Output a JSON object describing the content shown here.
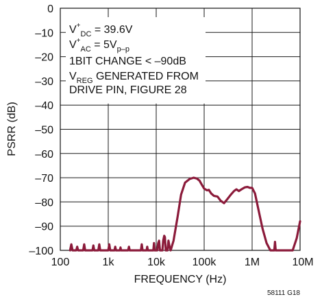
{
  "chart_data": {
    "type": "line",
    "xlabel": "FREQUENCY (Hz)",
    "ylabel": "PSRR (dB)",
    "x_scale": "log",
    "xlim": [
      100,
      10000000
    ],
    "ylim": [
      -100,
      0
    ],
    "grid": true,
    "x_ticks": [
      100,
      1000,
      10000,
      100000,
      1000000,
      10000000
    ],
    "x_tick_labels": [
      "100",
      "1k",
      "10k",
      "100k",
      "1M",
      "10M"
    ],
    "y_ticks": [
      0,
      -10,
      -20,
      -30,
      -40,
      -50,
      -60,
      -70,
      -80,
      -90,
      -100
    ],
    "y_tick_labels": [
      "0",
      "–10",
      "–20",
      "–30",
      "–40",
      "–50",
      "–60",
      "–70",
      "–80",
      "–90",
      "–100"
    ],
    "series_color": "#8b1a3a",
    "annotation": {
      "line1": {
        "main": "V",
        "sup": "+",
        "sub": "DC",
        "rest": " = 39.6V"
      },
      "line2": {
        "main": "V",
        "sup": "+",
        "sub": "AC",
        "rest": " = 5V",
        "sub2": "p–p"
      },
      "line3": "1BIT CHANGE < –90dB",
      "line4": {
        "main": "V",
        "sub": "REG",
        "rest": " GENERATED FROM"
      },
      "line5": "DRIVE PIN, FIGURE 28"
    },
    "figure_id": "58111 G18",
    "series": [
      {
        "points": [
          [
            160,
            -100
          ],
          [
            170,
            -97.5
          ],
          [
            180,
            -100
          ],
          [
            215,
            -100
          ],
          [
            225,
            -98.5
          ],
          [
            235,
            -100
          ],
          [
            300,
            -100
          ],
          [
            315,
            -97.5
          ],
          [
            330,
            -100
          ],
          [
            470,
            -100
          ],
          [
            490,
            -98
          ],
          [
            510,
            -100
          ],
          [
            620,
            -100
          ],
          [
            650,
            -97.5
          ],
          [
            680,
            -100
          ],
          [
            1000,
            -100
          ],
          [
            1050,
            -97.5
          ],
          [
            1100,
            -100
          ],
          [
            1350,
            -100
          ],
          [
            1400,
            -98.5
          ],
          [
            1450,
            -100
          ],
          [
            1750,
            -100
          ],
          [
            1800,
            -98.8
          ],
          [
            1850,
            -100
          ],
          [
            2600,
            -100
          ],
          [
            2700,
            -98.5
          ],
          [
            2800,
            -100
          ],
          [
            4800,
            -100
          ],
          [
            5000,
            -97.5
          ],
          [
            5200,
            -100
          ],
          [
            6300,
            -100
          ],
          [
            6500,
            -98.5
          ],
          [
            6700,
            -100
          ],
          [
            8700,
            -100
          ],
          [
            9000,
            -97
          ],
          [
            9300,
            -100
          ],
          [
            10500,
            -100
          ],
          [
            11000,
            -97
          ],
          [
            11500,
            -96
          ],
          [
            12000,
            -100
          ],
          [
            13500,
            -100
          ],
          [
            14000,
            -96
          ],
          [
            14700,
            -94
          ],
          [
            15200,
            -94.5
          ],
          [
            15800,
            -100
          ],
          [
            17200,
            -100
          ],
          [
            18000,
            -96
          ],
          [
            19000,
            -98.5
          ],
          [
            20000,
            -100
          ],
          [
            23000,
            -96
          ],
          [
            28000,
            -86
          ],
          [
            33000,
            -77
          ],
          [
            40000,
            -72
          ],
          [
            50000,
            -70.5
          ],
          [
            60000,
            -70
          ],
          [
            70000,
            -70.3
          ],
          [
            80000,
            -71.2
          ],
          [
            90000,
            -73
          ],
          [
            100000,
            -74.5
          ],
          [
            115000,
            -75.2
          ],
          [
            125000,
            -75
          ],
          [
            140000,
            -76.5
          ],
          [
            160000,
            -77.5
          ],
          [
            190000,
            -77.8
          ],
          [
            220000,
            -79.5
          ],
          [
            260000,
            -80.5
          ],
          [
            300000,
            -79
          ],
          [
            360000,
            -77
          ],
          [
            420000,
            -75.5
          ],
          [
            470000,
            -74.8
          ],
          [
            530000,
            -75.5
          ],
          [
            600000,
            -74.8
          ],
          [
            700000,
            -74
          ],
          [
            800000,
            -73.8
          ],
          [
            900000,
            -74.2
          ],
          [
            1000000,
            -74.2
          ],
          [
            1150000,
            -76.5
          ],
          [
            1350000,
            -83
          ],
          [
            1650000,
            -91
          ],
          [
            2000000,
            -97
          ],
          [
            2400000,
            -100
          ],
          [
            2900000,
            -100
          ],
          [
            3000000,
            -96.5
          ],
          [
            3100000,
            -100
          ],
          [
            7000000,
            -100
          ],
          [
            8500000,
            -95
          ],
          [
            10000000,
            -88
          ]
        ]
      }
    ]
  }
}
